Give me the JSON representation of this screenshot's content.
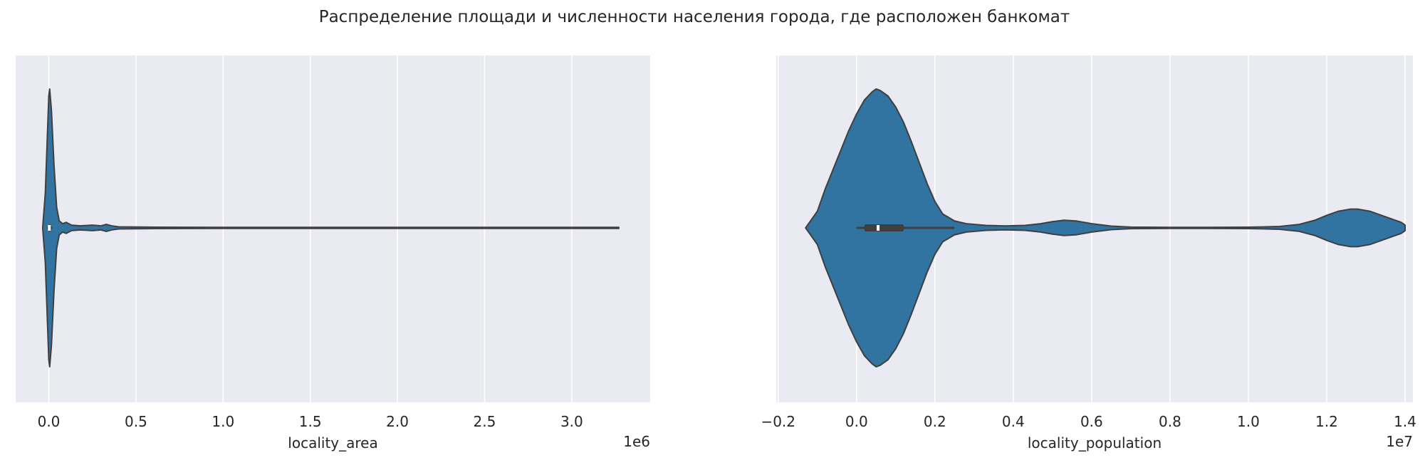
{
  "figure": {
    "title": "Распределение площади и численности населения города, где расположен банкомат"
  },
  "colors": {
    "axes_background": "#eaeaf2",
    "grid": "#ffffff",
    "violin_fill": "#3274a1",
    "violin_edge": "#3f3f3f",
    "box": "#3f3f3f",
    "median": "#ffffff"
  },
  "chart_data": [
    {
      "type": "violin",
      "orientation": "horizontal",
      "xlabel": "locality_area",
      "offset_label": "1e6",
      "xlim": [
        -0.19,
        3.45
      ],
      "ticks": [
        0.0,
        0.5,
        1.0,
        1.5,
        2.0,
        2.5,
        3.0
      ],
      "tick_labels": [
        "0.0",
        "0.5",
        "1.0",
        "1.5",
        "2.0",
        "2.5",
        "3.0"
      ],
      "grid": true,
      "density": [
        [
          -0.035,
          0.0
        ],
        [
          -0.02,
          0.25
        ],
        [
          -0.01,
          0.6
        ],
        [
          0.0,
          0.95
        ],
        [
          0.005,
          1.0
        ],
        [
          0.015,
          0.85
        ],
        [
          0.03,
          0.45
        ],
        [
          0.045,
          0.15
        ],
        [
          0.06,
          0.05
        ],
        [
          0.08,
          0.03
        ],
        [
          0.1,
          0.04
        ],
        [
          0.13,
          0.02
        ],
        [
          0.18,
          0.015
        ],
        [
          0.25,
          0.02
        ],
        [
          0.3,
          0.015
        ],
        [
          0.33,
          0.025
        ],
        [
          0.36,
          0.015
        ],
        [
          0.4,
          0.008
        ],
        [
          0.6,
          0.005
        ],
        [
          1.0,
          0.004
        ],
        [
          2.0,
          0.004
        ],
        [
          3.0,
          0.004
        ],
        [
          3.27,
          0.004
        ]
      ],
      "box": {
        "min": -0.01,
        "q1": 0.0,
        "median": 0.003,
        "q3": 0.008,
        "max": 0.02
      }
    },
    {
      "type": "violin",
      "orientation": "horizontal",
      "xlabel": "locality_population",
      "offset_label": "1e7",
      "xlim": [
        -0.205,
        1.42
      ],
      "ticks": [
        -0.2,
        0.0,
        0.2,
        0.4,
        0.6,
        0.8,
        1.0,
        1.2,
        1.4
      ],
      "tick_labels": [
        "−0.2",
        "0.0",
        "0.2",
        "0.4",
        "0.6",
        "0.8",
        "1.0",
        "1.2",
        "1.4"
      ],
      "grid": true,
      "density": [
        [
          -0.13,
          0.0
        ],
        [
          -0.12,
          0.04
        ],
        [
          -0.1,
          0.12
        ],
        [
          -0.08,
          0.28
        ],
        [
          -0.06,
          0.42
        ],
        [
          -0.04,
          0.56
        ],
        [
          -0.02,
          0.7
        ],
        [
          0.0,
          0.82
        ],
        [
          0.02,
          0.92
        ],
        [
          0.04,
          0.98
        ],
        [
          0.05,
          1.0
        ],
        [
          0.06,
          0.99
        ],
        [
          0.08,
          0.95
        ],
        [
          0.1,
          0.87
        ],
        [
          0.12,
          0.76
        ],
        [
          0.14,
          0.62
        ],
        [
          0.16,
          0.47
        ],
        [
          0.18,
          0.32
        ],
        [
          0.2,
          0.19
        ],
        [
          0.22,
          0.1
        ],
        [
          0.25,
          0.05
        ],
        [
          0.28,
          0.03
        ],
        [
          0.33,
          0.018
        ],
        [
          0.38,
          0.014
        ],
        [
          0.43,
          0.018
        ],
        [
          0.47,
          0.03
        ],
        [
          0.5,
          0.045
        ],
        [
          0.53,
          0.055
        ],
        [
          0.56,
          0.05
        ],
        [
          0.6,
          0.03
        ],
        [
          0.65,
          0.013
        ],
        [
          0.7,
          0.006
        ],
        [
          0.8,
          0.004
        ],
        [
          0.9,
          0.004
        ],
        [
          1.0,
          0.005
        ],
        [
          1.08,
          0.01
        ],
        [
          1.13,
          0.025
        ],
        [
          1.17,
          0.055
        ],
        [
          1.2,
          0.09
        ],
        [
          1.23,
          0.12
        ],
        [
          1.26,
          0.135
        ],
        [
          1.28,
          0.135
        ],
        [
          1.31,
          0.12
        ],
        [
          1.34,
          0.09
        ],
        [
          1.37,
          0.06
        ],
        [
          1.39,
          0.04
        ],
        [
          1.4,
          0.02
        ]
      ],
      "box": {
        "min": 0.0,
        "q1": 0.02,
        "median": 0.055,
        "q3": 0.12,
        "max": 0.25
      }
    }
  ]
}
